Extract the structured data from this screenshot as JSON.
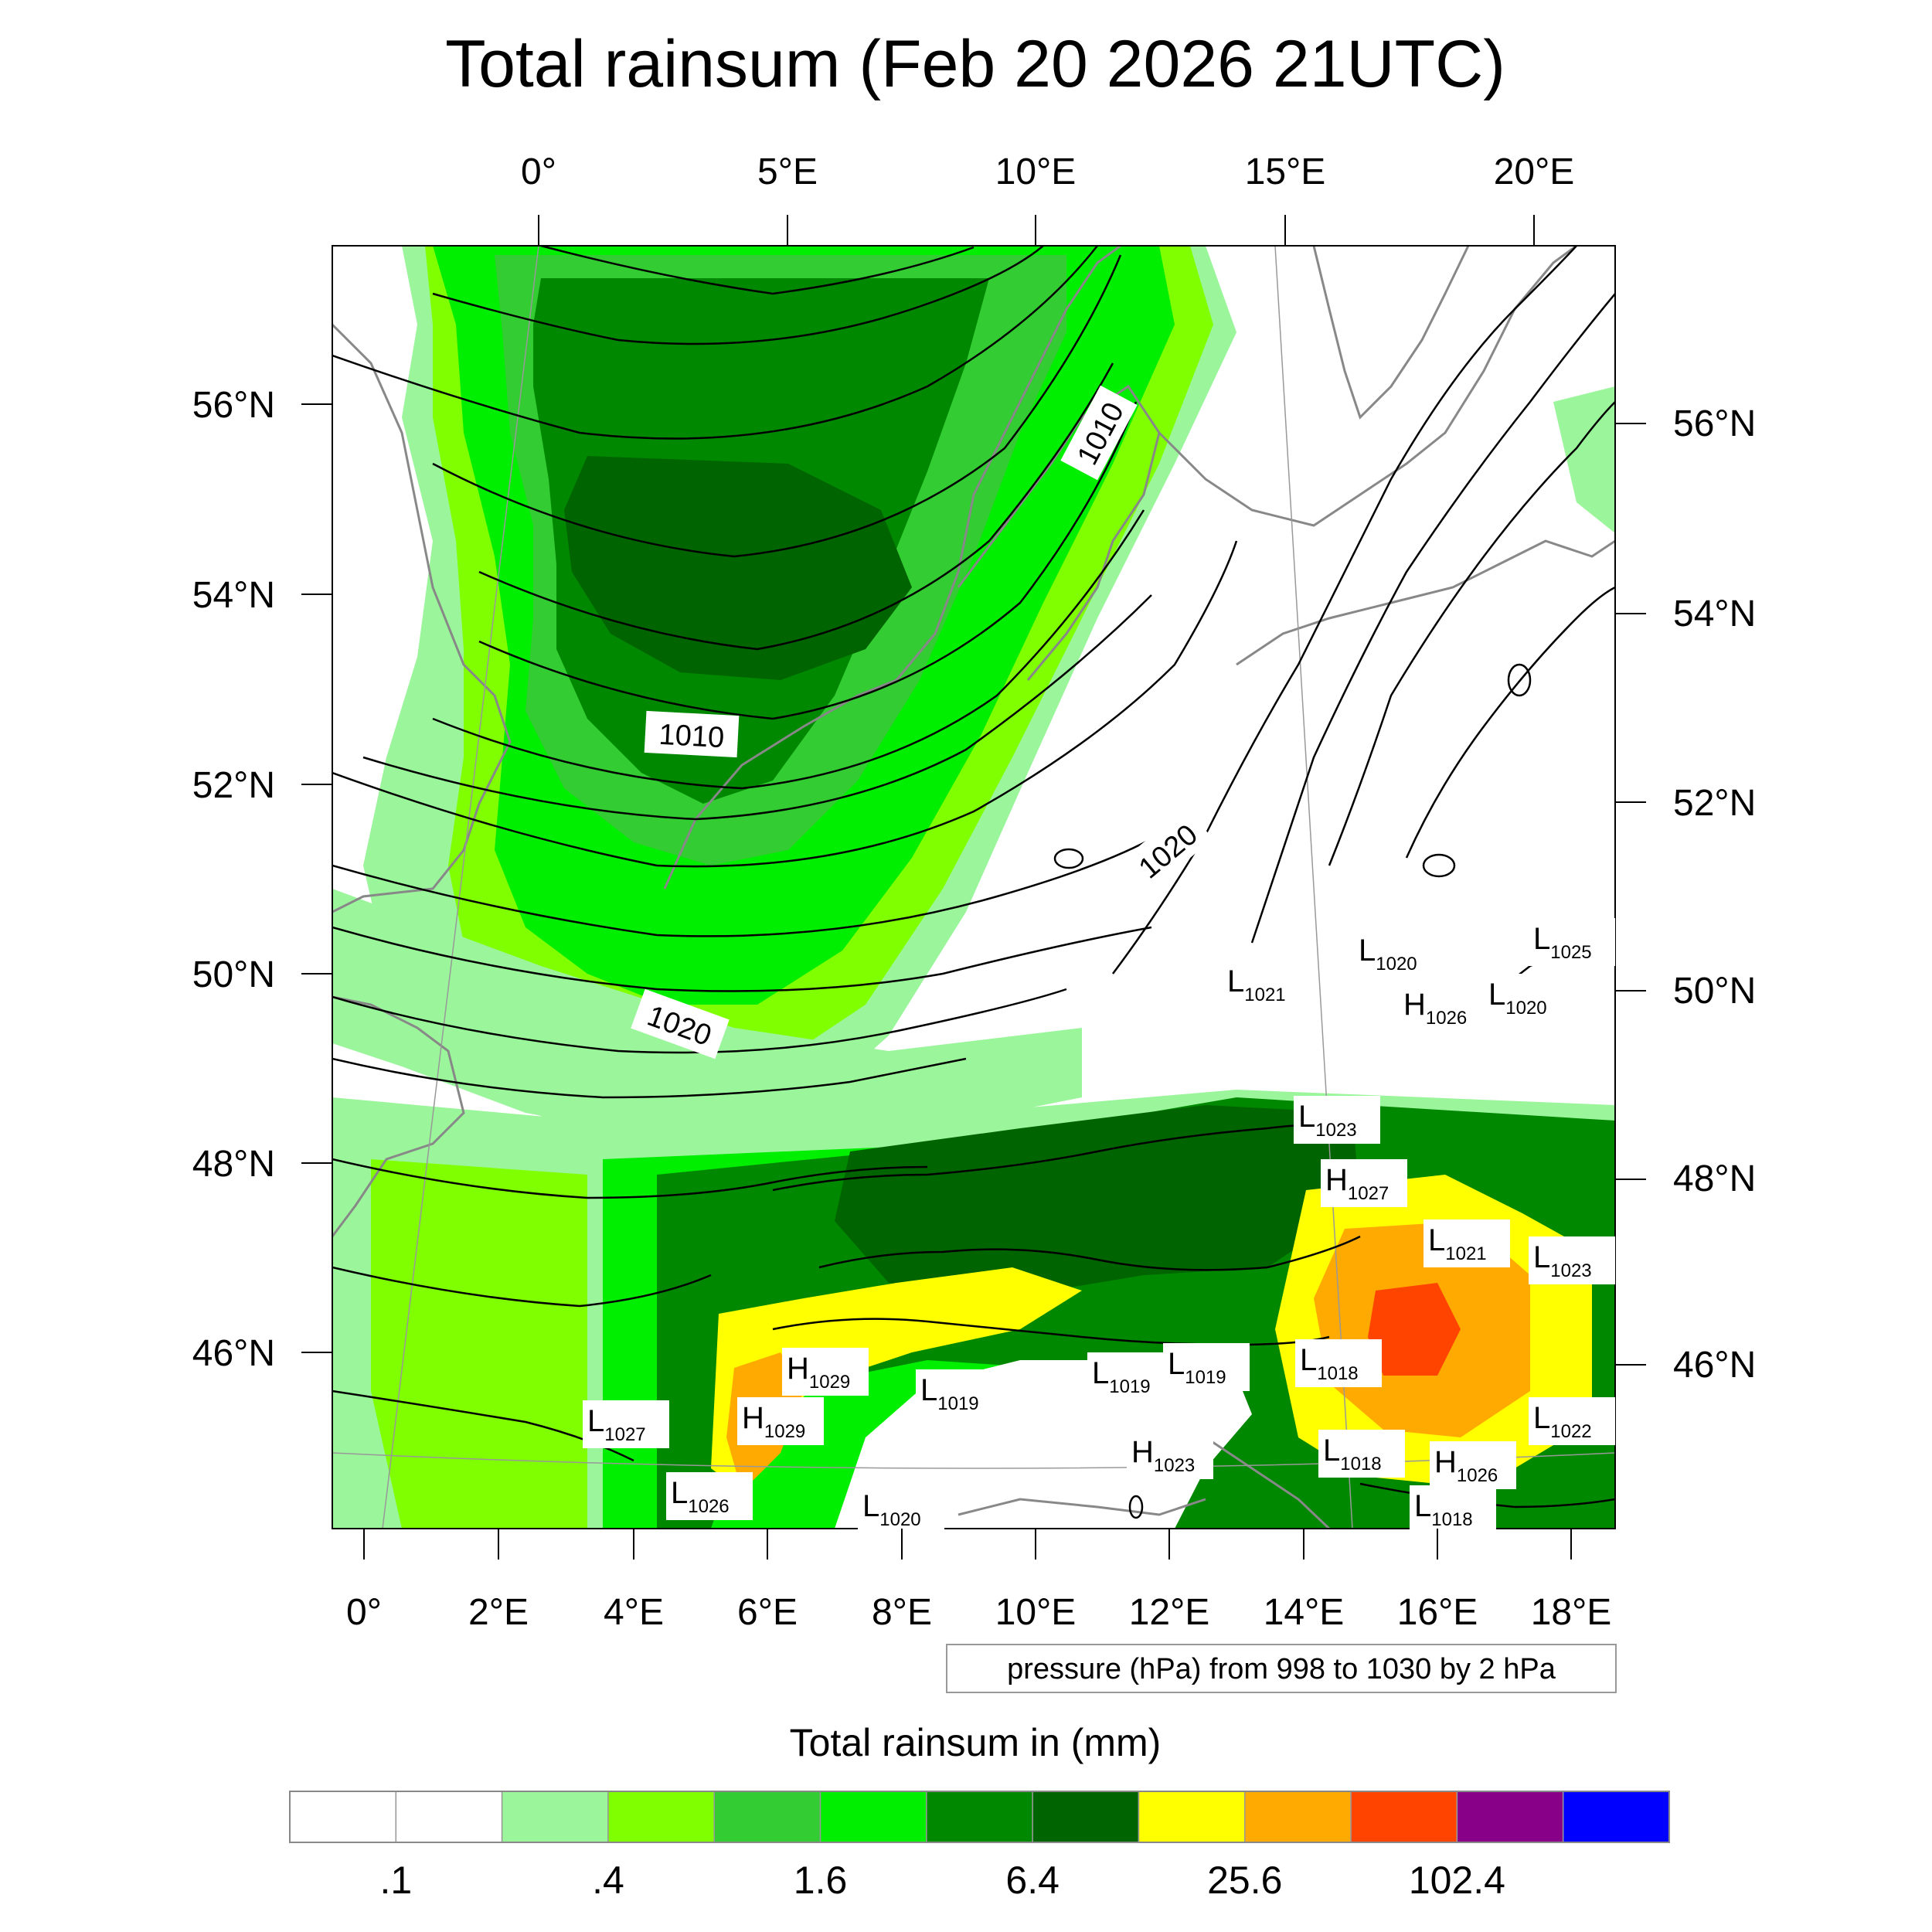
{
  "title": "Total rainsum (Feb 20 2026 21UTC)",
  "top_lon_ticks": [
    "0°",
    "5°E",
    "10°E",
    "15°E",
    "20°E"
  ],
  "bottom_lon_ticks": [
    "0°",
    "2°E",
    "4°E",
    "6°E",
    "8°E",
    "10°E",
    "12°E",
    "14°E",
    "16°E",
    "18°E"
  ],
  "left_lat_ticks": [
    "56°N",
    "54°N",
    "52°N",
    "50°N",
    "48°N",
    "46°N"
  ],
  "right_lat_ticks": [
    "56°N",
    "54°N",
    "52°N",
    "50°N",
    "48°N",
    "46°N"
  ],
  "contour_labels": [
    "1010",
    "1010",
    "1020",
    "1020"
  ],
  "pressure_centers": [
    {
      "type": "L",
      "value": "1020"
    },
    {
      "type": "L",
      "value": "1025"
    },
    {
      "type": "L",
      "value": "1021"
    },
    {
      "type": "H",
      "value": "1026"
    },
    {
      "type": "L",
      "value": "1020"
    },
    {
      "type": "L",
      "value": "1023"
    },
    {
      "type": "H",
      "value": "1027"
    },
    {
      "type": "L",
      "value": "1021"
    },
    {
      "type": "L",
      "value": "1023"
    },
    {
      "type": "L",
      "value": "1018"
    },
    {
      "type": "H",
      "value": "1029"
    },
    {
      "type": "H",
      "value": "1029"
    },
    {
      "type": "L",
      "value": "1019"
    },
    {
      "type": "L",
      "value": "1019"
    },
    {
      "type": "L",
      "value": "1019"
    },
    {
      "type": "L",
      "value": "1027"
    },
    {
      "type": "L",
      "value": "1022"
    },
    {
      "type": "L",
      "value": "1018"
    },
    {
      "type": "H",
      "value": "1026"
    },
    {
      "type": "H",
      "value": "1023"
    },
    {
      "type": "L",
      "value": "1026"
    },
    {
      "type": "L",
      "value": "1020"
    },
    {
      "type": "L",
      "value": "1018"
    }
  ],
  "contour_info": "pressure (hPa) from 998 to 1030 by 2 hPa",
  "colorbar": {
    "title": "Total rainsum in (mm)",
    "colors": [
      "#ffffff",
      "#ffffff",
      "#9bf59b",
      "#80ff00",
      "#33cc33",
      "#00ee00",
      "#008800",
      "#006400",
      "#ffff00",
      "#ffaa00",
      "#ff4400",
      "#880088",
      "#0000ff"
    ],
    "tick_labels": [
      ".1",
      ".4",
      "1.6",
      "6.4",
      "25.6",
      "102.4"
    ]
  }
}
